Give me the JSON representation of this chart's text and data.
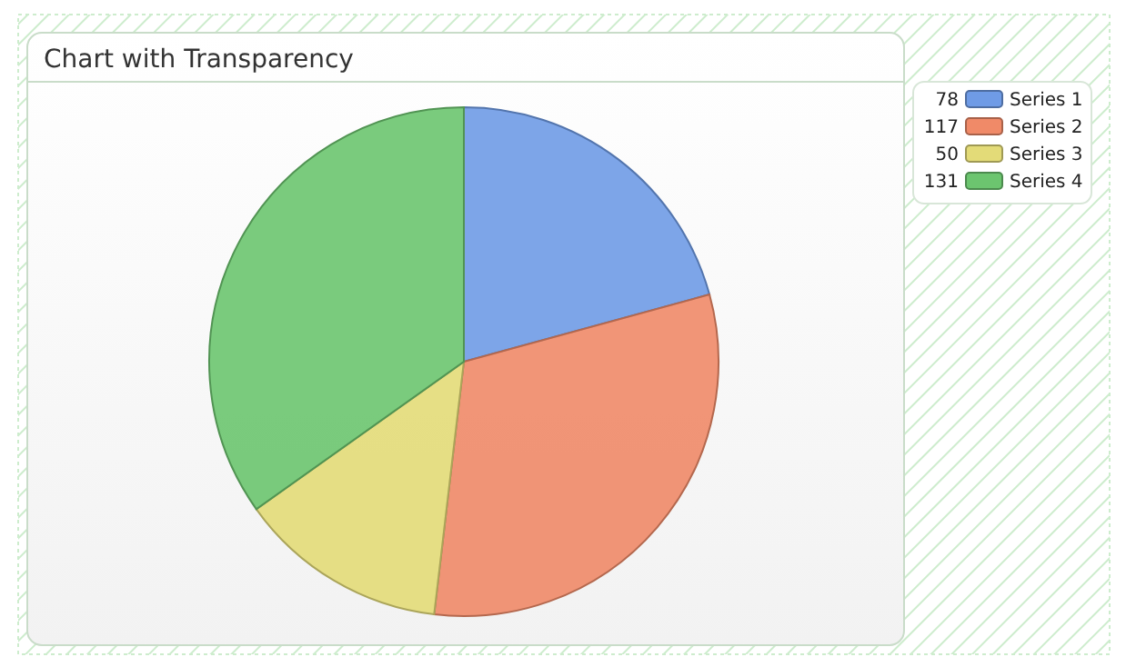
{
  "chart_data": {
    "type": "pie",
    "title": "Chart with Transparency",
    "categories": [
      "Series 1",
      "Series 2",
      "Series 3",
      "Series 4"
    ],
    "values": [
      78,
      117,
      50,
      131
    ],
    "colors": [
      "#6f9be6",
      "#f08a68",
      "#e3db78",
      "#6cc56f"
    ],
    "data_labels": true,
    "legend": "top right"
  }
}
